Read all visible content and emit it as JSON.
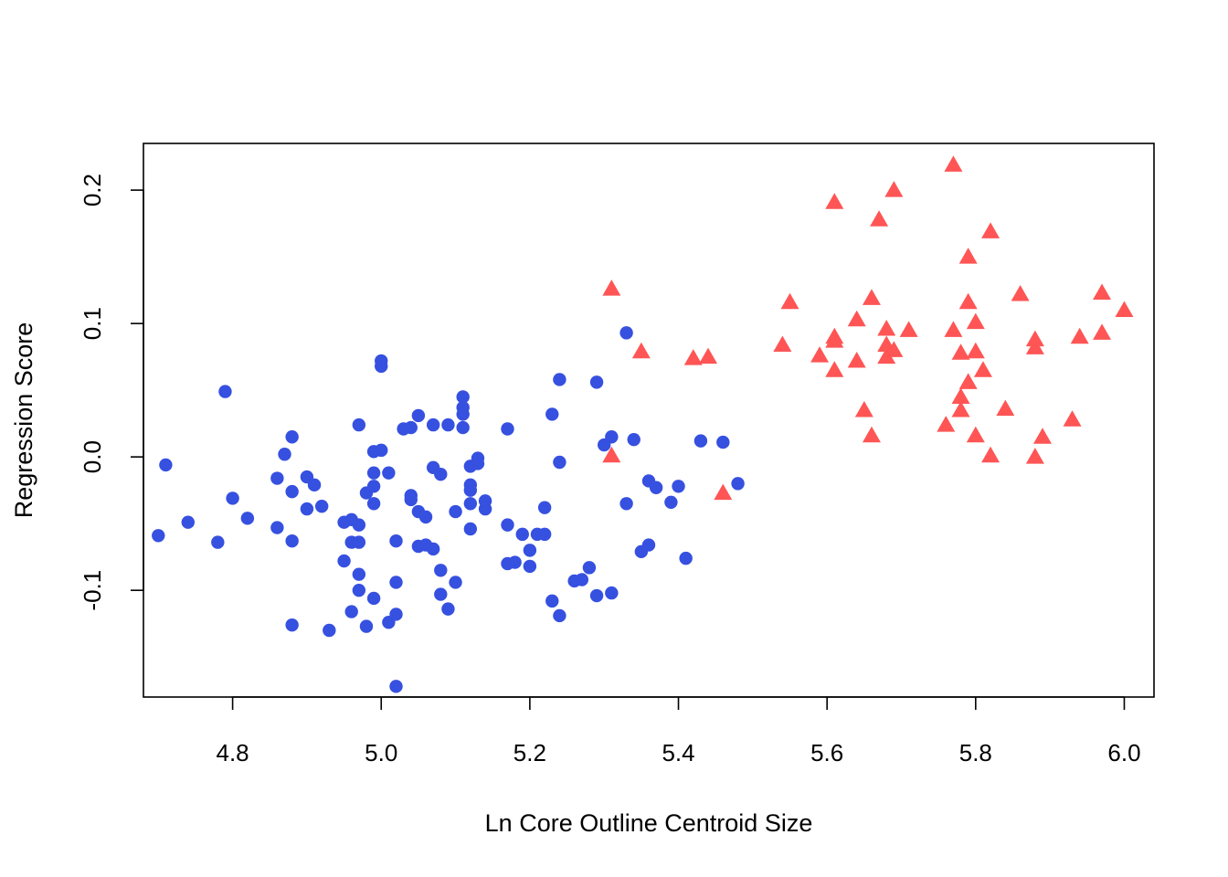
{
  "chart_data": {
    "type": "scatter",
    "title": "",
    "xlabel": "Ln Core Outline Centroid Size",
    "ylabel": "Regression Score",
    "xlim": [
      4.68,
      6.04
    ],
    "ylim": [
      -0.18,
      0.235
    ],
    "xticks": [
      4.8,
      5.0,
      5.2,
      5.4,
      5.6,
      5.8,
      6.0
    ],
    "xtick_labels": [
      "4.8",
      "5.0",
      "5.2",
      "5.4",
      "5.6",
      "5.8",
      "6.0"
    ],
    "yticks": [
      -0.1,
      0.0,
      0.1,
      0.2
    ],
    "ytick_labels": [
      "-0.1",
      "0.0",
      "0.1",
      "0.2"
    ],
    "grid": false,
    "series": [
      {
        "marker": "circle",
        "color": "#3650E0",
        "points": [
          [
            4.7,
            -0.059
          ],
          [
            4.71,
            -0.006
          ],
          [
            4.74,
            -0.049
          ],
          [
            4.78,
            -0.064
          ],
          [
            4.79,
            0.049
          ],
          [
            4.8,
            -0.031
          ],
          [
            4.82,
            -0.046
          ],
          [
            4.86,
            -0.016
          ],
          [
            4.86,
            -0.053
          ],
          [
            4.87,
            0.002
          ],
          [
            4.88,
            0.015
          ],
          [
            4.88,
            -0.026
          ],
          [
            4.88,
            -0.063
          ],
          [
            4.88,
            -0.126
          ],
          [
            4.9,
            -0.015
          ],
          [
            4.9,
            -0.039
          ],
          [
            4.91,
            -0.021
          ],
          [
            4.92,
            -0.037
          ],
          [
            4.93,
            -0.13
          ],
          [
            4.95,
            -0.078
          ],
          [
            4.95,
            -0.049
          ],
          [
            4.96,
            -0.047
          ],
          [
            4.96,
            -0.064
          ],
          [
            4.96,
            -0.116
          ],
          [
            4.97,
            0.024
          ],
          [
            4.97,
            -0.064
          ],
          [
            4.97,
            -0.088
          ],
          [
            4.97,
            -0.1
          ],
          [
            4.97,
            -0.051
          ],
          [
            4.98,
            -0.127
          ],
          [
            4.98,
            -0.027
          ],
          [
            4.99,
            0.004
          ],
          [
            4.99,
            -0.035
          ],
          [
            4.99,
            -0.022
          ],
          [
            4.99,
            -0.106
          ],
          [
            4.99,
            -0.012
          ],
          [
            5.0,
            0.072
          ],
          [
            5.0,
            0.005
          ],
          [
            5.0,
            0.068
          ],
          [
            5.01,
            -0.012
          ],
          [
            5.01,
            -0.124
          ],
          [
            5.02,
            -0.118
          ],
          [
            5.02,
            -0.094
          ],
          [
            5.02,
            -0.063
          ],
          [
            5.02,
            -0.172
          ],
          [
            5.03,
            0.021
          ],
          [
            5.04,
            0.022
          ],
          [
            5.04,
            -0.029
          ],
          [
            5.04,
            -0.032
          ],
          [
            5.05,
            0.031
          ],
          [
            5.05,
            -0.041
          ],
          [
            5.05,
            -0.067
          ],
          [
            5.06,
            -0.045
          ],
          [
            5.06,
            -0.066
          ],
          [
            5.07,
            0.024
          ],
          [
            5.07,
            -0.008
          ],
          [
            5.07,
            -0.069
          ],
          [
            5.08,
            -0.013
          ],
          [
            5.08,
            -0.085
          ],
          [
            5.08,
            -0.103
          ],
          [
            5.09,
            -0.114
          ],
          [
            5.09,
            0.024
          ],
          [
            5.1,
            -0.041
          ],
          [
            5.1,
            -0.094
          ],
          [
            5.11,
            0.037
          ],
          [
            5.11,
            0.045
          ],
          [
            5.11,
            0.032
          ],
          [
            5.11,
            0.022
          ],
          [
            5.12,
            -0.021
          ],
          [
            5.12,
            -0.025
          ],
          [
            5.12,
            -0.035
          ],
          [
            5.12,
            -0.054
          ],
          [
            5.12,
            -0.007
          ],
          [
            5.13,
            -0.001
          ],
          [
            5.13,
            -0.005
          ],
          [
            5.14,
            -0.033
          ],
          [
            5.14,
            -0.039
          ],
          [
            5.17,
            0.021
          ],
          [
            5.17,
            -0.051
          ],
          [
            5.17,
            -0.08
          ],
          [
            5.18,
            -0.079
          ],
          [
            5.19,
            -0.058
          ],
          [
            5.2,
            -0.082
          ],
          [
            5.2,
            -0.07
          ],
          [
            5.21,
            -0.058
          ],
          [
            5.22,
            -0.058
          ],
          [
            5.22,
            -0.038
          ],
          [
            5.23,
            0.032
          ],
          [
            5.24,
            -0.004
          ],
          [
            5.24,
            0.058
          ],
          [
            5.23,
            -0.108
          ],
          [
            5.24,
            -0.119
          ],
          [
            5.26,
            -0.093
          ],
          [
            5.27,
            -0.092
          ],
          [
            5.28,
            -0.083
          ],
          [
            5.29,
            -0.104
          ],
          [
            5.29,
            0.056
          ],
          [
            5.3,
            0.009
          ],
          [
            5.31,
            0.015
          ],
          [
            5.31,
            -0.102
          ],
          [
            5.33,
            0.093
          ],
          [
            5.33,
            -0.035
          ],
          [
            5.34,
            0.013
          ],
          [
            5.35,
            -0.071
          ],
          [
            5.36,
            -0.018
          ],
          [
            5.36,
            -0.066
          ],
          [
            5.37,
            -0.023
          ],
          [
            5.39,
            -0.034
          ],
          [
            5.4,
            -0.022
          ],
          [
            5.41,
            -0.076
          ],
          [
            5.43,
            0.012
          ],
          [
            5.46,
            0.011
          ],
          [
            5.48,
            -0.02
          ]
        ]
      },
      {
        "marker": "triangle",
        "color": "#FF5555",
        "points": [
          [
            5.31,
            0.126
          ],
          [
            5.31,
            0.001
          ],
          [
            5.35,
            0.079
          ],
          [
            5.42,
            0.074
          ],
          [
            5.44,
            0.075
          ],
          [
            5.46,
            -0.027
          ],
          [
            5.54,
            0.084
          ],
          [
            5.55,
            0.116
          ],
          [
            5.59,
            0.076
          ],
          [
            5.61,
            0.09
          ],
          [
            5.61,
            0.087
          ],
          [
            5.61,
            0.065
          ],
          [
            5.61,
            0.191
          ],
          [
            5.64,
            0.072
          ],
          [
            5.64,
            0.103
          ],
          [
            5.65,
            0.035
          ],
          [
            5.66,
            0.119
          ],
          [
            5.66,
            0.016
          ],
          [
            5.67,
            0.178
          ],
          [
            5.68,
            0.096
          ],
          [
            5.68,
            0.084
          ],
          [
            5.68,
            0.075
          ],
          [
            5.69,
            0.08
          ],
          [
            5.69,
            0.2
          ],
          [
            5.71,
            0.095
          ],
          [
            5.76,
            0.024
          ],
          [
            5.77,
            0.219
          ],
          [
            5.77,
            0.095
          ],
          [
            5.78,
            0.045
          ],
          [
            5.78,
            0.035
          ],
          [
            5.78,
            0.078
          ],
          [
            5.79,
            0.056
          ],
          [
            5.79,
            0.116
          ],
          [
            5.79,
            0.15
          ],
          [
            5.8,
            0.101
          ],
          [
            5.8,
            0.016
          ],
          [
            5.8,
            0.079
          ],
          [
            5.81,
            0.065
          ],
          [
            5.82,
            0.169
          ],
          [
            5.82,
            0.001
          ],
          [
            5.84,
            0.036
          ],
          [
            5.86,
            0.122
          ],
          [
            5.88,
            0.088
          ],
          [
            5.88,
            0.082
          ],
          [
            5.88,
            0.0
          ],
          [
            5.89,
            0.015
          ],
          [
            5.93,
            0.028
          ],
          [
            5.94,
            0.09
          ],
          [
            5.97,
            0.123
          ],
          [
            5.97,
            0.093
          ],
          [
            6.0,
            0.11
          ]
        ]
      }
    ]
  }
}
